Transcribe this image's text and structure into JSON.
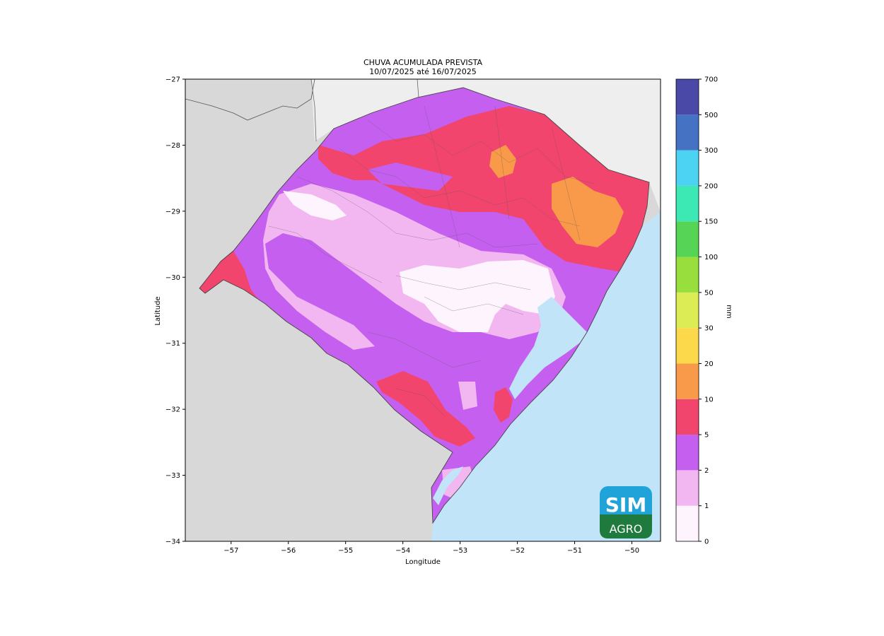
{
  "title": {
    "line1": "CHUVA ACUMULADA PREVISTA",
    "line2": "10/07/2025 até 16/07/2025"
  },
  "axes": {
    "xlabel": "Longitude",
    "ylabel": "Latitude",
    "xlim": [
      -57.8,
      -49.5
    ],
    "ylim": [
      -34,
      -27
    ],
    "xticks": [
      -57,
      -56,
      -55,
      -54,
      -53,
      -52,
      -51,
      -50
    ],
    "yticks": [
      -27,
      -28,
      -29,
      -30,
      -31,
      -32,
      -33,
      -34
    ],
    "xtick_labels": [
      "−57",
      "−56",
      "−55",
      "−54",
      "−53",
      "−52",
      "−51",
      "−50"
    ],
    "ytick_labels": [
      "−27",
      "−28",
      "−29",
      "−30",
      "−31",
      "−32",
      "−33",
      "−34"
    ]
  },
  "colorbar": {
    "unit": "mm",
    "levels": [
      "0",
      "1",
      "2",
      "5",
      "10",
      "20",
      "30",
      "50",
      "100",
      "150",
      "200",
      "300",
      "500",
      "700"
    ],
    "colors": [
      "#fdf4fd",
      "#f2b6f0",
      "#c55ff0",
      "#f2456e",
      "#f99a4a",
      "#fbd94a",
      "#dbec55",
      "#98df3e",
      "#55d455",
      "#3ce8b4",
      "#4cd2f2",
      "#4672c3",
      "#4b49a8"
    ]
  },
  "map_colors": {
    "land_outside": "#d8d8d8",
    "ocean": "#c2e4f8",
    "bg_north": "#eeeeee"
  },
  "logo": {
    "line1": "SIM",
    "line2": "AGRO"
  }
}
